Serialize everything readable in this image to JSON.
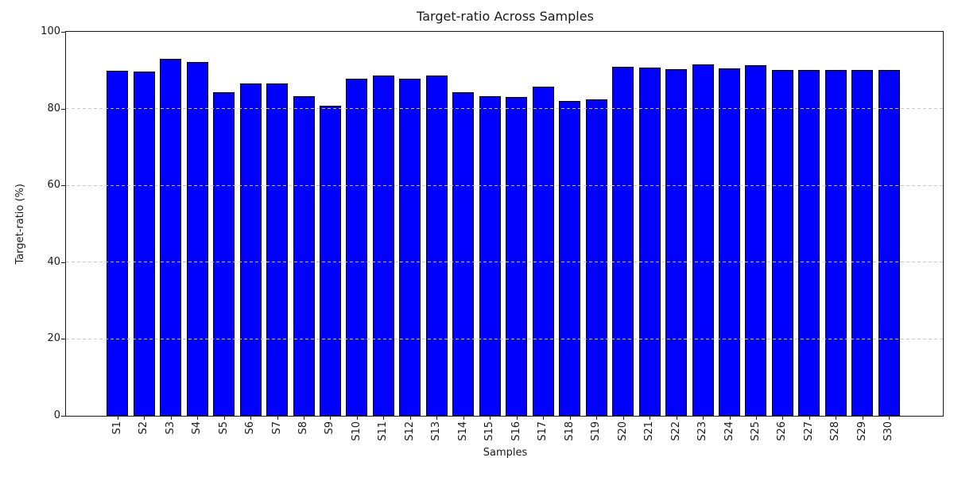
{
  "figure": {
    "background": "#ffffff"
  },
  "chart_data": {
    "type": "bar",
    "title": "Target-ratio Across Samples",
    "xlabel": "Samples",
    "ylabel": "Target-ratio (%)",
    "categories": [
      "S1",
      "S2",
      "S3",
      "S4",
      "S5",
      "S6",
      "S7",
      "S8",
      "S9",
      "S10",
      "S11",
      "S12",
      "S13",
      "S14",
      "S15",
      "S16",
      "S17",
      "S18",
      "S19",
      "S20",
      "S21",
      "S22",
      "S23",
      "S24",
      "S25",
      "S26",
      "S27",
      "S28",
      "S29",
      "S30"
    ],
    "values": [
      89.9,
      89.7,
      93.0,
      92.1,
      84.2,
      86.6,
      86.5,
      83.2,
      80.7,
      87.8,
      88.6,
      87.7,
      88.7,
      84.2,
      83.2,
      83.0,
      85.7,
      82.0,
      82.4,
      90.9,
      90.6,
      90.2,
      91.6,
      90.5,
      91.3,
      90.0,
      90.1,
      90.1,
      90.1,
      90.1
    ],
    "ylim": [
      0,
      100
    ],
    "yticks": [
      0,
      20,
      40,
      60,
      80,
      100
    ],
    "xticklabel_rotation": 90,
    "grid": "horizontal-dashed",
    "grid_above_bars": true,
    "legend_position": "none",
    "bar_color": "#0000ff",
    "bar_edge_color": "#000000",
    "grid_color": "#c9c9c9",
    "text_color": "#1a1a1a"
  }
}
